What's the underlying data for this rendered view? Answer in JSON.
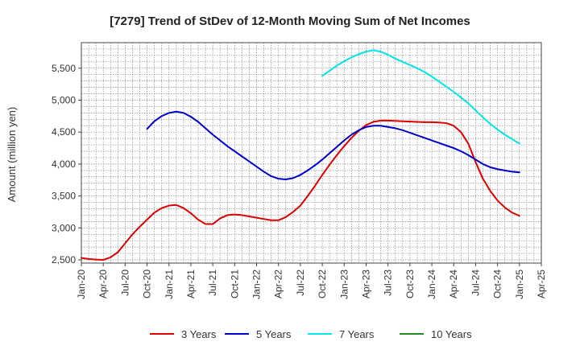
{
  "chart_data": {
    "type": "line",
    "title": "[7279]  Trend of StDev of 12-Month Moving Sum of Net Incomes",
    "xlabel": "",
    "ylabel": "Amount (million yen)",
    "ylim": [
      2450,
      5900
    ],
    "yticks": [
      2500,
      3000,
      3500,
      4000,
      4500,
      5000,
      5500
    ],
    "ytick_labels": [
      "2,500",
      "3,000",
      "3,500",
      "4,000",
      "4,500",
      "5,000",
      "5,500"
    ],
    "xlim": [
      "2020-01",
      "2025-04"
    ],
    "xticks": [
      "Jan-20",
      "Apr-20",
      "Jul-20",
      "Oct-20",
      "Jan-21",
      "Apr-21",
      "Jul-21",
      "Oct-21",
      "Jan-22",
      "Apr-22",
      "Jul-22",
      "Oct-22",
      "Jan-23",
      "Apr-23",
      "Jul-23",
      "Oct-23",
      "Jan-24",
      "Apr-24",
      "Jul-24",
      "Oct-24",
      "Jan-25",
      "Apr-25"
    ],
    "grid": true,
    "legend_position": "bottom",
    "series": [
      {
        "name": "3 Years",
        "color": "#dd0000",
        "points": [
          [
            "2020-01",
            2530
          ],
          [
            "2020-02",
            2515
          ],
          [
            "2020-03",
            2505
          ],
          [
            "2020-04",
            2500
          ],
          [
            "2020-05",
            2540
          ],
          [
            "2020-06",
            2620
          ],
          [
            "2020-07",
            2760
          ],
          [
            "2020-08",
            2900
          ],
          [
            "2020-09",
            3020
          ],
          [
            "2020-10",
            3130
          ],
          [
            "2020-11",
            3240
          ],
          [
            "2020-12",
            3310
          ],
          [
            "2021-01",
            3350
          ],
          [
            "2021-02",
            3360
          ],
          [
            "2021-03",
            3310
          ],
          [
            "2021-04",
            3230
          ],
          [
            "2021-05",
            3130
          ],
          [
            "2021-06",
            3060
          ],
          [
            "2021-07",
            3060
          ],
          [
            "2021-08",
            3150
          ],
          [
            "2021-09",
            3200
          ],
          [
            "2021-10",
            3210
          ],
          [
            "2021-11",
            3200
          ],
          [
            "2021-12",
            3180
          ],
          [
            "2022-01",
            3160
          ],
          [
            "2022-02",
            3140
          ],
          [
            "2022-03",
            3120
          ],
          [
            "2022-04",
            3120
          ],
          [
            "2022-05",
            3170
          ],
          [
            "2022-06",
            3250
          ],
          [
            "2022-07",
            3350
          ],
          [
            "2022-08",
            3500
          ],
          [
            "2022-09",
            3660
          ],
          [
            "2022-10",
            3830
          ],
          [
            "2022-11",
            3990
          ],
          [
            "2022-12",
            4140
          ],
          [
            "2023-01",
            4280
          ],
          [
            "2023-02",
            4410
          ],
          [
            "2023-03",
            4520
          ],
          [
            "2023-04",
            4610
          ],
          [
            "2023-05",
            4660
          ],
          [
            "2023-06",
            4680
          ],
          [
            "2023-07",
            4680
          ],
          [
            "2023-08",
            4675
          ],
          [
            "2023-09",
            4670
          ],
          [
            "2023-10",
            4665
          ],
          [
            "2023-11",
            4660
          ],
          [
            "2023-12",
            4655
          ],
          [
            "2024-01",
            4655
          ],
          [
            "2024-02",
            4650
          ],
          [
            "2024-03",
            4640
          ],
          [
            "2024-04",
            4600
          ],
          [
            "2024-05",
            4500
          ],
          [
            "2024-06",
            4320
          ],
          [
            "2024-07",
            4030
          ],
          [
            "2024-08",
            3770
          ],
          [
            "2024-09",
            3580
          ],
          [
            "2024-10",
            3430
          ],
          [
            "2024-11",
            3320
          ],
          [
            "2024-12",
            3240
          ],
          [
            "2025-01",
            3190
          ]
        ]
      },
      {
        "name": "5 Years",
        "color": "#0000cc",
        "points": [
          [
            "2020-10",
            4550
          ],
          [
            "2020-11",
            4670
          ],
          [
            "2020-12",
            4750
          ],
          [
            "2021-01",
            4800
          ],
          [
            "2021-02",
            4820
          ],
          [
            "2021-03",
            4800
          ],
          [
            "2021-04",
            4740
          ],
          [
            "2021-05",
            4660
          ],
          [
            "2021-06",
            4560
          ],
          [
            "2021-07",
            4460
          ],
          [
            "2021-08",
            4370
          ],
          [
            "2021-09",
            4280
          ],
          [
            "2021-10",
            4200
          ],
          [
            "2021-11",
            4120
          ],
          [
            "2021-12",
            4040
          ],
          [
            "2022-01",
            3960
          ],
          [
            "2022-02",
            3880
          ],
          [
            "2022-03",
            3810
          ],
          [
            "2022-04",
            3770
          ],
          [
            "2022-05",
            3760
          ],
          [
            "2022-06",
            3780
          ],
          [
            "2022-07",
            3830
          ],
          [
            "2022-08",
            3900
          ],
          [
            "2022-09",
            3980
          ],
          [
            "2022-10",
            4070
          ],
          [
            "2022-11",
            4170
          ],
          [
            "2022-12",
            4270
          ],
          [
            "2023-01",
            4370
          ],
          [
            "2023-02",
            4460
          ],
          [
            "2023-03",
            4530
          ],
          [
            "2023-04",
            4580
          ],
          [
            "2023-05",
            4600
          ],
          [
            "2023-06",
            4600
          ],
          [
            "2023-07",
            4580
          ],
          [
            "2023-08",
            4560
          ],
          [
            "2023-09",
            4530
          ],
          [
            "2023-10",
            4490
          ],
          [
            "2023-11",
            4450
          ],
          [
            "2023-12",
            4410
          ],
          [
            "2024-01",
            4370
          ],
          [
            "2024-02",
            4330
          ],
          [
            "2024-03",
            4290
          ],
          [
            "2024-04",
            4250
          ],
          [
            "2024-05",
            4200
          ],
          [
            "2024-06",
            4140
          ],
          [
            "2024-07",
            4070
          ],
          [
            "2024-08",
            4000
          ],
          [
            "2024-09",
            3950
          ],
          [
            "2024-10",
            3920
          ],
          [
            "2024-11",
            3900
          ],
          [
            "2024-12",
            3880
          ],
          [
            "2025-01",
            3870
          ]
        ]
      },
      {
        "name": "7 Years",
        "color": "#00e5e5",
        "points": [
          [
            "2022-10",
            5380
          ],
          [
            "2022-11",
            5460
          ],
          [
            "2022-12",
            5540
          ],
          [
            "2023-01",
            5610
          ],
          [
            "2023-02",
            5670
          ],
          [
            "2023-03",
            5720
          ],
          [
            "2023-04",
            5760
          ],
          [
            "2023-05",
            5780
          ],
          [
            "2023-06",
            5760
          ],
          [
            "2023-07",
            5710
          ],
          [
            "2023-08",
            5650
          ],
          [
            "2023-09",
            5600
          ],
          [
            "2023-10",
            5550
          ],
          [
            "2023-11",
            5500
          ],
          [
            "2023-12",
            5440
          ],
          [
            "2024-01",
            5370
          ],
          [
            "2024-02",
            5290
          ],
          [
            "2024-03",
            5210
          ],
          [
            "2024-04",
            5130
          ],
          [
            "2024-05",
            5040
          ],
          [
            "2024-06",
            4950
          ],
          [
            "2024-07",
            4840
          ],
          [
            "2024-08",
            4730
          ],
          [
            "2024-09",
            4630
          ],
          [
            "2024-10",
            4540
          ],
          [
            "2024-11",
            4460
          ],
          [
            "2024-12",
            4390
          ],
          [
            "2025-01",
            4320
          ]
        ]
      },
      {
        "name": "10 Years",
        "color": "#228b22",
        "points": []
      }
    ]
  }
}
